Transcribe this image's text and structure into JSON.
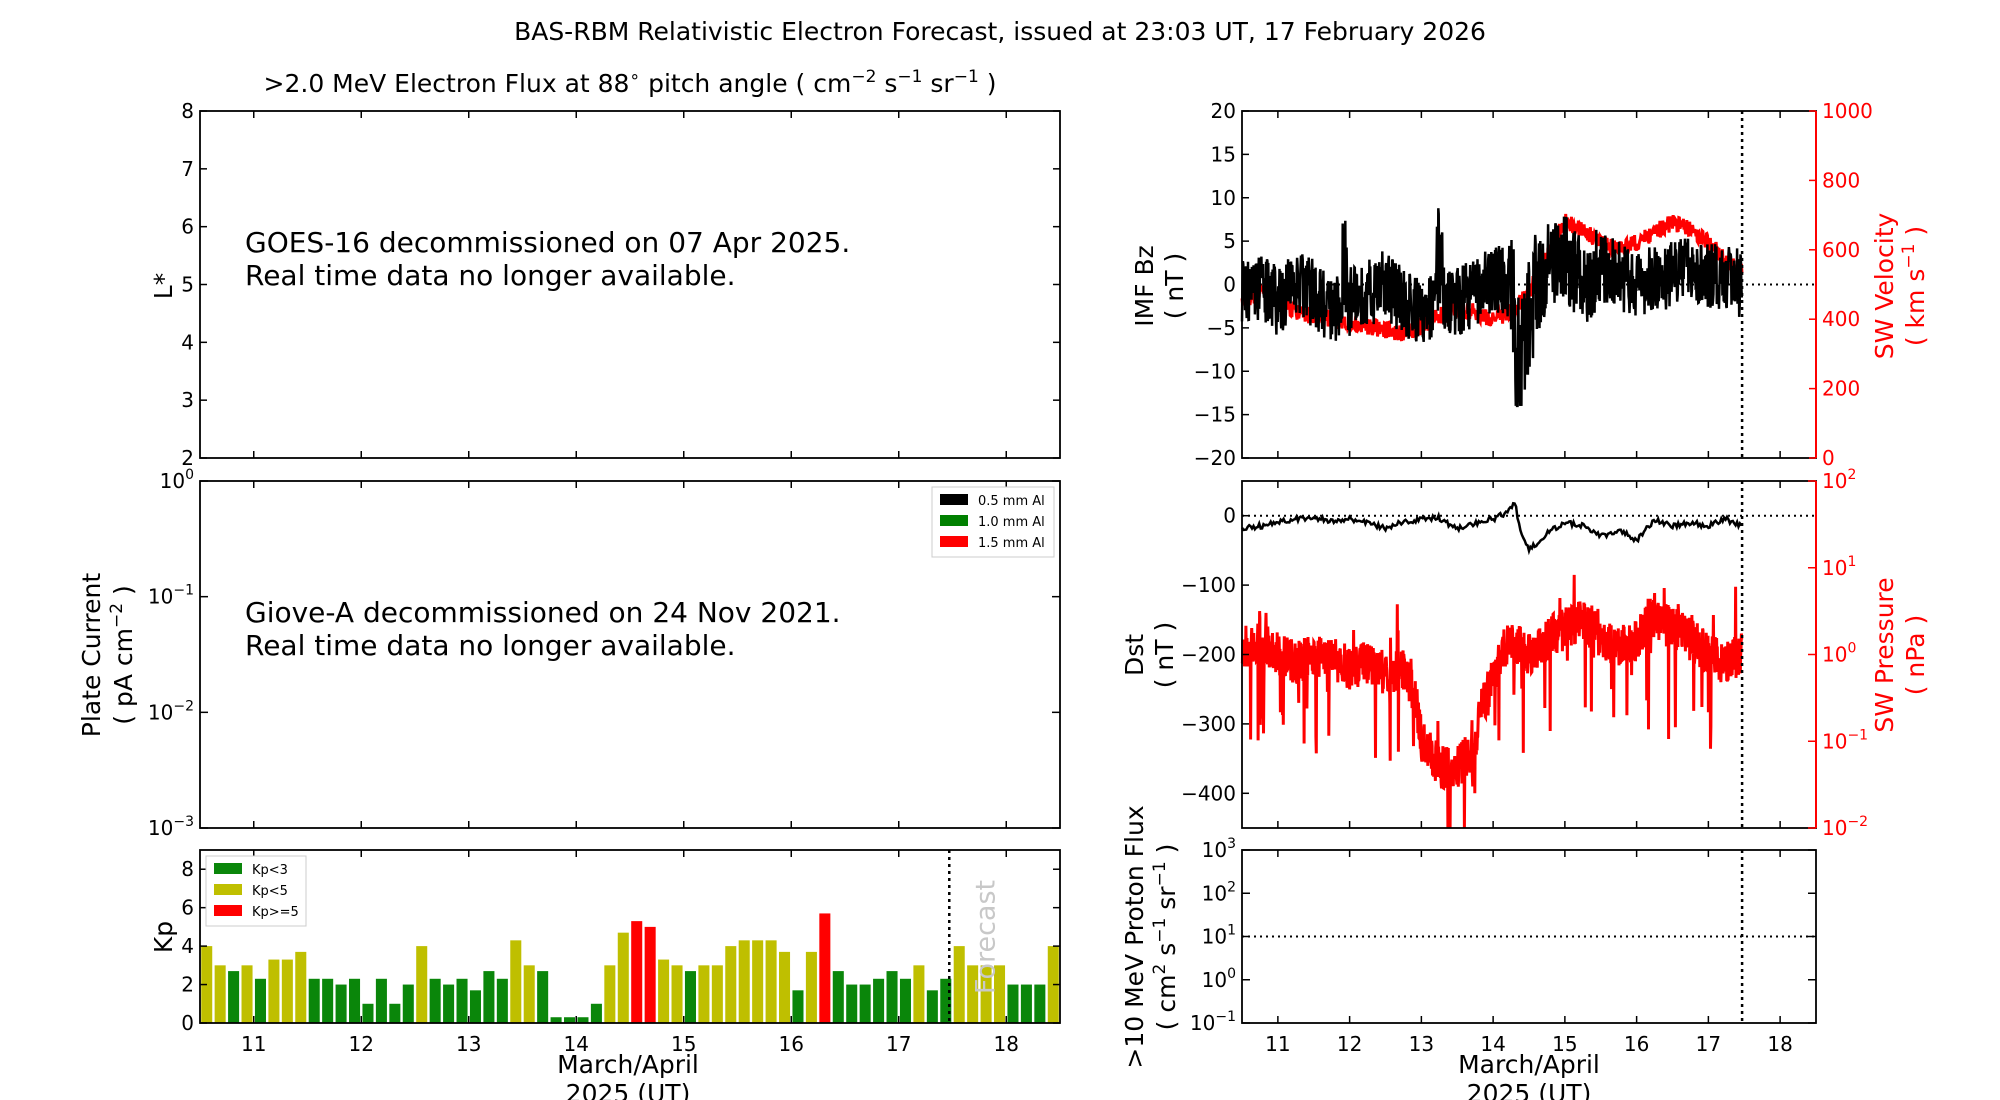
{
  "suptitle": "BAS-RBM Relativistic Electron Forecast, issued at 23:03 UT, 17 February 2026",
  "colors": {
    "red": "#ff0000",
    "kp_low": "#0a860a",
    "kp_mid": "#bfbf00",
    "kp_high": "#ff0000",
    "grey": "#c8c8c8"
  },
  "chart_data": [
    {
      "id": "electron-flux",
      "type": "heatmap",
      "title": ">2.0 MeV Electron Flux at 88 pitch angle ( cm-2 s-1 sr-1 )",
      "title_parts": {
        "a": ">2.0 MeV Electron Flux at 88",
        "deg": "∘",
        "b": " pitch angle ( cm",
        "e1": "−2",
        "c": " s",
        "e2": "−1",
        "d": " sr",
        "e3": "−1",
        "f": " )"
      },
      "ylabel": "L*",
      "ylim": [
        2,
        8
      ],
      "yticks": [
        "2",
        "3",
        "4",
        "5",
        "6",
        "7",
        "8"
      ],
      "annotation": [
        "GOES-16 decommissioned on 07 Apr 2025.",
        "Real time data no longer available."
      ]
    },
    {
      "id": "plate-current",
      "type": "line",
      "ylabel": "Plate Current",
      "ylabel_units": {
        "a": "( pA cm",
        "e": "−2",
        "b": " )"
      },
      "yscale": "log",
      "ylim": [
        0.001,
        1
      ],
      "yticks": [
        {
          "base": "10",
          "exp": "−3"
        },
        {
          "base": "10",
          "exp": "−2"
        },
        {
          "base": "10",
          "exp": "−1"
        },
        {
          "base": "10",
          "exp": "0"
        }
      ],
      "legend": [
        "0.5 mm Al",
        "1.0 mm Al",
        "1.5 mm Al"
      ],
      "annotation": [
        "Giove-A decommissioned on 24 Nov 2021.",
        "Real time data no longer available."
      ]
    },
    {
      "id": "kp",
      "type": "bar",
      "ylabel": "Kp",
      "ylim": [
        0,
        9
      ],
      "yticks": [
        "0",
        "2",
        "4",
        "6",
        "8"
      ],
      "xlim": [
        10.5,
        18.5
      ],
      "xticks": [
        "11",
        "12",
        "13",
        "14",
        "15",
        "16",
        "17",
        "18"
      ],
      "xlabel": [
        "March/April",
        "2025 (UT)"
      ],
      "legend": [
        "Kp<3",
        "Kp<5",
        "Kp>=5"
      ],
      "forecast_label": "Forecast",
      "forecast_start": 17.47,
      "values": [
        4.0,
        3.0,
        2.7,
        3.0,
        2.3,
        3.3,
        3.3,
        3.7,
        2.3,
        2.3,
        2.0,
        2.3,
        1.0,
        2.3,
        1.0,
        2.0,
        4.0,
        2.3,
        2.0,
        2.3,
        1.7,
        2.7,
        2.3,
        4.3,
        3.0,
        2.7,
        0.3,
        0.3,
        0.3,
        1.0,
        3.0,
        4.7,
        5.3,
        5.0,
        3.3,
        3.0,
        2.7,
        3.0,
        3.0,
        4.0,
        4.3,
        4.3,
        4.3,
        3.7,
        1.7,
        3.7,
        5.7,
        2.7,
        2.0,
        2.0,
        2.3,
        2.7,
        2.3,
        3.0,
        1.7,
        2.3,
        4.0,
        3.0,
        3.0,
        3.0,
        2.0,
        2.0,
        2.0,
        4.0
      ]
    },
    {
      "id": "imf-bz",
      "type": "line",
      "ylabel": "IMF Bz",
      "ylabel_units": "( nT )",
      "ylim": [
        -20,
        20
      ],
      "yticks": [
        "−20",
        "−15",
        "−10",
        "−5",
        "0",
        "5",
        "10",
        "15",
        "20"
      ],
      "y2label": "SW Velocity",
      "y2label_units": {
        "a": "( km s",
        "e": "−1",
        "b": " )"
      },
      "y2lim": [
        0,
        1000
      ],
      "y2ticks": [
        "0",
        "200",
        "400",
        "600",
        "800",
        "1000"
      ],
      "xlim": [
        10.5,
        18.5
      ],
      "data_end": 17.47,
      "series": [
        {
          "name": "IMF Bz",
          "x": [
            10.5,
            10.75,
            11.0,
            11.25,
            11.5,
            11.75,
            12.0,
            12.25,
            12.5,
            12.75,
            13.0,
            13.25,
            13.5,
            13.75,
            14.0,
            14.25,
            14.4,
            14.5,
            14.75,
            15.0,
            15.25,
            15.5,
            15.75,
            16.0,
            16.25,
            16.5,
            16.75,
            17.0,
            17.25,
            17.47
          ],
          "y": [
            -1,
            0,
            -2,
            0,
            -1,
            -3,
            -2,
            -1,
            0,
            -2,
            -3,
            -2,
            -2,
            -1,
            1,
            0,
            -7,
            -3,
            2,
            3,
            0,
            2,
            1,
            0,
            1,
            1,
            2,
            1,
            1,
            0
          ]
        },
        {
          "name": "SW Velocity",
          "x": [
            10.5,
            10.75,
            11.0,
            11.25,
            11.5,
            11.75,
            12.0,
            12.25,
            12.5,
            12.75,
            13.0,
            13.25,
            13.5,
            13.75,
            14.0,
            14.25,
            14.5,
            14.75,
            15.0,
            15.25,
            15.5,
            15.75,
            16.0,
            16.25,
            16.5,
            16.75,
            17.0,
            17.25,
            17.47
          ],
          "y": [
            450,
            480,
            460,
            420,
            410,
            400,
            390,
            380,
            370,
            360,
            380,
            410,
            430,
            420,
            400,
            420,
            480,
            580,
            680,
            660,
            620,
            600,
            620,
            650,
            680,
            660,
            620,
            570,
            540
          ]
        }
      ]
    },
    {
      "id": "dst",
      "type": "line",
      "ylabel": "Dst",
      "ylabel_units": "( nT )",
      "ylim": [
        -450,
        50
      ],
      "yticks": [
        "−400",
        "−300",
        "−200",
        "−100",
        "0"
      ],
      "y2label": "SW Pressure",
      "y2label_units": "( nPa )",
      "y2scale": "log",
      "y2lim": [
        0.01,
        100
      ],
      "y2ticks": [
        {
          "base": "10",
          "exp": "−2"
        },
        {
          "base": "10",
          "exp": "−1"
        },
        {
          "base": "10",
          "exp": "0"
        },
        {
          "base": "10",
          "exp": "1"
        },
        {
          "base": "10",
          "exp": "2"
        }
      ],
      "xlim": [
        10.5,
        18.5
      ],
      "data_end": 17.47,
      "series": [
        {
          "name": "Dst",
          "x": [
            10.5,
            10.75,
            11.0,
            11.25,
            11.5,
            11.75,
            12.0,
            12.25,
            12.5,
            12.75,
            13.0,
            13.25,
            13.5,
            13.75,
            14.0,
            14.2,
            14.3,
            14.4,
            14.5,
            14.75,
            15.0,
            15.25,
            15.5,
            15.75,
            16.0,
            16.25,
            16.5,
            16.75,
            17.0,
            17.25,
            17.47
          ],
          "y": [
            -18,
            -15,
            -10,
            -5,
            -3,
            -8,
            -5,
            -10,
            -18,
            -8,
            -5,
            -3,
            -20,
            -10,
            -5,
            5,
            20,
            -30,
            -50,
            -25,
            -10,
            -15,
            -30,
            -20,
            -35,
            -5,
            -15,
            -10,
            -15,
            -5,
            -15
          ]
        },
        {
          "name": "SW Pressure",
          "x": [
            10.5,
            10.75,
            11.0,
            11.25,
            11.5,
            11.75,
            12.0,
            12.25,
            12.5,
            12.75,
            13.0,
            13.25,
            13.5,
            13.75,
            14.0,
            14.25,
            14.5,
            14.75,
            15.0,
            15.25,
            15.5,
            15.75,
            16.0,
            16.25,
            16.5,
            16.75,
            17.0,
            17.25,
            17.47
          ],
          "y": [
            1.2,
            1.5,
            1.0,
            0.8,
            1.0,
            0.9,
            0.7,
            0.8,
            0.6,
            0.7,
            0.1,
            0.05,
            0.05,
            0.08,
            0.5,
            1.5,
            1.0,
            1.5,
            2.0,
            2.5,
            1.5,
            1.2,
            1.5,
            2.5,
            2.0,
            1.5,
            1.0,
            0.8,
            1.0
          ]
        }
      ]
    },
    {
      "id": "proton-flux",
      "type": "line",
      "ylabel": ">10 MeV Proton Flux",
      "ylabel_units": {
        "a": "( cm",
        "e1": "2",
        "b": " s",
        "e2": "−1",
        "c": " sr",
        "e3": "−1",
        "d": " )"
      },
      "yscale": "log",
      "ylim": [
        0.1,
        1000
      ],
      "yticks": [
        {
          "base": "10",
          "exp": "−1"
        },
        {
          "base": "10",
          "exp": "0"
        },
        {
          "base": "10",
          "exp": "1"
        },
        {
          "base": "10",
          "exp": "2"
        },
        {
          "base": "10",
          "exp": "3"
        }
      ],
      "threshold": 10,
      "xlim": [
        10.5,
        18.5
      ],
      "xticks": [
        "11",
        "12",
        "13",
        "14",
        "15",
        "16",
        "17",
        "18"
      ],
      "xlabel": [
        "March/April",
        "2025 (UT)"
      ]
    }
  ]
}
